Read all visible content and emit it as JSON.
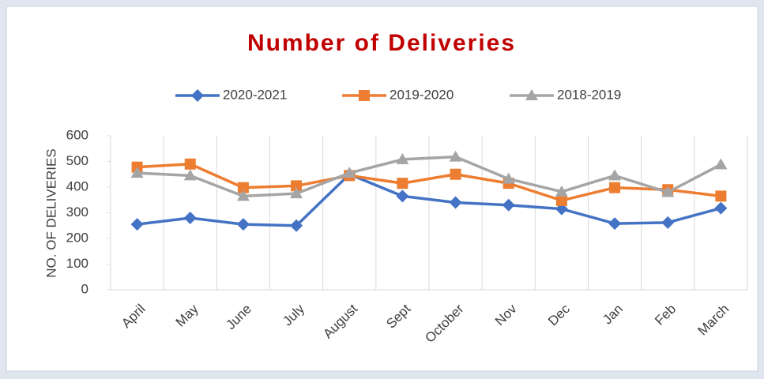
{
  "chart_data": {
    "type": "line",
    "title": "Number of Deliveries",
    "y_label": "NO. OF DELIVERIES",
    "categories": [
      "April",
      "May",
      "June",
      "July",
      "August",
      "Sept",
      "October",
      "Nov",
      "Dec",
      "Jan",
      "Feb",
      "March"
    ],
    "series": [
      {
        "name": "2020-2021",
        "color": "#4472c4",
        "marker": "diamond",
        "values": [
          255,
          280,
          255,
          250,
          450,
          365,
          340,
          330,
          315,
          258,
          262,
          318
        ]
      },
      {
        "name": "2019-2020",
        "color": "#ed7d31",
        "marker": "square",
        "values": [
          478,
          490,
          398,
          405,
          445,
          415,
          450,
          415,
          348,
          398,
          390,
          365
        ]
      },
      {
        "name": "2018-2019",
        "color": "#a5a5a5",
        "marker": "triangle",
        "values": [
          455,
          445,
          365,
          375,
          455,
          508,
          518,
          432,
          382,
          445,
          380,
          488
        ]
      }
    ],
    "ylim": [
      0,
      600
    ],
    "yticks": [
      0,
      100,
      200,
      300,
      400,
      500,
      600
    ],
    "legend": "top"
  }
}
